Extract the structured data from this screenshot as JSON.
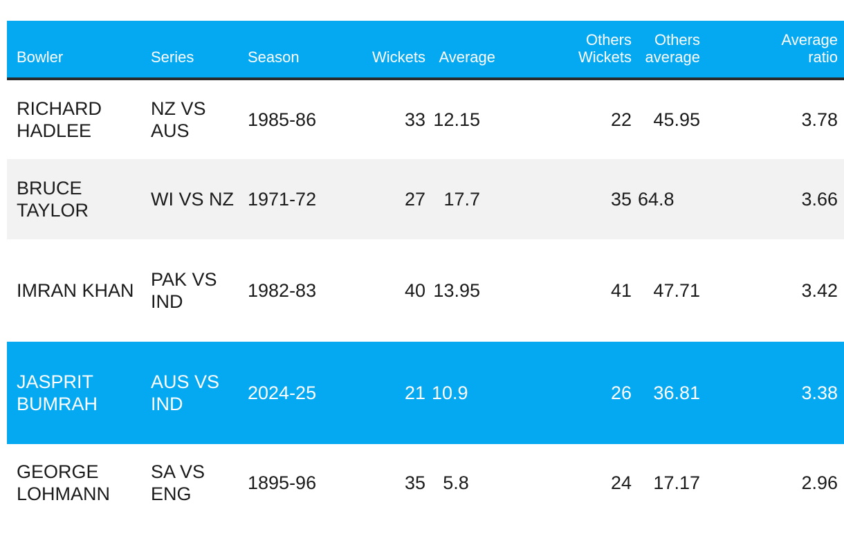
{
  "colors": {
    "header_bg": "#05a9f1",
    "highlight_bg": "#05a9f1",
    "alt_row_bg": "#f2f2f2",
    "header_rule": "#2a2a2a"
  },
  "table": {
    "headers": {
      "bowler": "Bowler",
      "series": "Series",
      "season": "Season",
      "wickets": "Wickets",
      "average": "Average",
      "others_wickets_1": "Others",
      "others_wickets_2": "Wickets",
      "others_average_1": "Others",
      "others_average_2": "average",
      "average_ratio_1": "Average",
      "average_ratio_2": "ratio"
    },
    "rows": [
      {
        "bowler": "RICHARD HADLEE",
        "series": "NZ VS AUS",
        "season": "1985-86",
        "wickets": "33",
        "average": "12.15",
        "others_wickets": "22",
        "others_average": "45.95",
        "average_ratio": "3.78"
      },
      {
        "bowler": "BRUCE TAYLOR",
        "series": "WI VS NZ",
        "season": "1971-72",
        "wickets": "27",
        "average": "17.7",
        "others_wickets": "35",
        "others_average": "64.8",
        "average_ratio": "3.66"
      },
      {
        "bowler": "IMRAN KHAN",
        "series": "PAK VS IND",
        "season": "1982-83",
        "wickets": "40",
        "average": "13.95",
        "others_wickets": "41",
        "others_average": "47.71",
        "average_ratio": "3.42"
      },
      {
        "bowler": "JASPRIT BUMRAH",
        "series": "AUS VS IND",
        "season": "2024-25",
        "wickets": "21",
        "average": "10.9",
        "others_wickets": "26",
        "others_average": "36.81",
        "average_ratio": "3.38"
      },
      {
        "bowler": "GEORGE LOHMANN",
        "series": "SA VS ENG",
        "season": "1895-96",
        "wickets": "35",
        "average": "5.8",
        "others_wickets": "24",
        "others_average": "17.17",
        "average_ratio": "2.96"
      }
    ]
  }
}
